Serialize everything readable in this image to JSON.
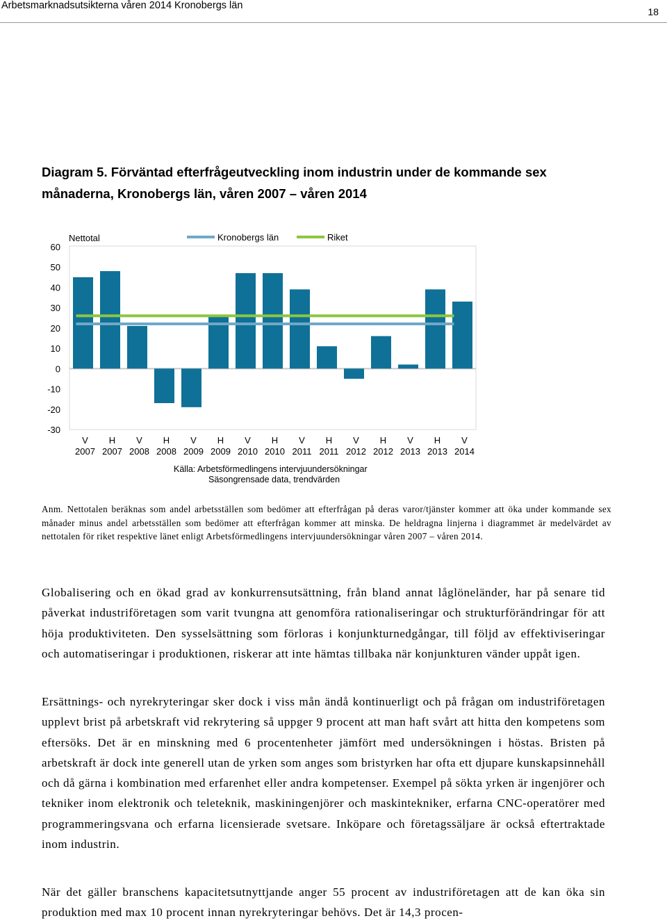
{
  "header": {
    "title": "Arbetsmarknadsutsikterna våren 2014 Kronobergs län",
    "page_number": "18"
  },
  "diagram": {
    "title": "Diagram 5. Förväntad efterfrågeutveckling inom industrin under de kommande sex månaderna, Kronobergs län, våren 2007 – våren 2014"
  },
  "chart_data": {
    "type": "bar",
    "series_label": "Nettotal",
    "categories": [
      [
        "V",
        "2007"
      ],
      [
        "H",
        "2007"
      ],
      [
        "V",
        "2008"
      ],
      [
        "H",
        "2008"
      ],
      [
        "V",
        "2009"
      ],
      [
        "H",
        "2009"
      ],
      [
        "V",
        "2010"
      ],
      [
        "H",
        "2010"
      ],
      [
        "V",
        "2011"
      ],
      [
        "H",
        "2011"
      ],
      [
        "V",
        "2012"
      ],
      [
        "H",
        "2012"
      ],
      [
        "V",
        "2013"
      ],
      [
        "H",
        "2013"
      ],
      [
        "V",
        "2014"
      ]
    ],
    "values": [
      45,
      48,
      21,
      -17,
      -19,
      26,
      47,
      47,
      39,
      11,
      -5,
      16,
      2,
      39,
      33
    ],
    "lines": [
      {
        "name": "Kronobergs län",
        "value": 22,
        "color": "#6fa8c8"
      },
      {
        "name": "Riket",
        "value": 26,
        "color": "#8cc63f"
      }
    ],
    "ylim": [
      -30,
      60
    ],
    "yticks": [
      60,
      50,
      40,
      30,
      20,
      10,
      0,
      -10,
      -20,
      -30
    ],
    "bar_color": "#0f7197",
    "source": [
      "Källa: Arbetsförmedlingens intervjuundersökningar",
      "Säsongrensade data, trendvärden"
    ]
  },
  "note": "Anm. Nettotalen beräknas som andel arbetsställen som bedömer att efterfrågan på deras varor/tjänster kommer att öka under kommande sex månader minus andel arbetsställen som bedömer att efterfrågan kommer att minska. De heldragna linjerna i diagrammet är medelvärdet av nettotalen för riket respektive länet enligt Arbetsförmedlingens intervjuundersökningar våren 2007 – våren 2014.",
  "paragraphs": [
    "Globalisering och en ökad grad av konkurrensutsättning, från bland annat låglöneländer, har på senare tid påverkat industriföretagen som varit tvungna att genomföra rationaliseringar och strukturförändringar för att höja produktiviteten. Den sysselsättning som förloras i konjunkturnedgångar, till följd av effektiviseringar och automatiseringar i produktionen, riskerar att inte hämtas tillbaka när konjunkturen vänder uppåt igen.",
    "Ersättnings- och nyrekryteringar sker dock i viss mån ändå kontinuerligt och på frågan om industriföretagen upplevt brist på arbetskraft vid rekrytering så uppger 9 procent att man haft svårt att hitta den kompetens som eftersöks. Det är en minskning med 6 procentenheter jämfört med undersökningen i höstas. Bristen på arbetskraft är dock inte generell utan de yrken som anges som bristyrken har ofta ett djupare kunskapsinnehåll och då gärna i kombination med erfarenhet eller andra kompetenser. Exempel på sökta yrken är ingenjörer och tekniker inom elektronik och teleteknik, maskiningenjörer och maskintekniker, erfarna CNC-operatörer med programmeringsvana och erfarna licensierade svetsare. Inköpare och företagssäljare är också eftertraktade inom industrin.",
    "När det gäller branschens kapacitetsutnyttjande anger 55 procent av industriföretagen att de kan öka sin produktion med max 10 procent innan nyrekryteringar behövs. Det är 14,3 procen-"
  ]
}
